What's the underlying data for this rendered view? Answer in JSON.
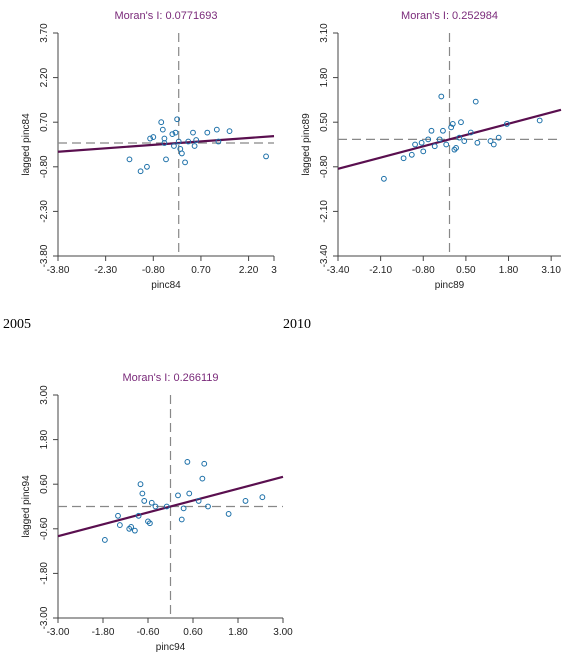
{
  "year_labels": [
    "2005",
    "2010"
  ],
  "chart_data": [
    {
      "type": "scatter",
      "title": "Moran's I: 0.0771693",
      "xlabel": "pinc84",
      "ylabel": "lagged pinc84",
      "xlim": [
        -3.8,
        3.0
      ],
      "ylim": [
        -3.8,
        3.7
      ],
      "x_ticks": [
        "-3.80",
        "-2.30",
        "-0.80",
        "0.70",
        "2.20",
        "3"
      ],
      "x_tick_values": [
        -3.8,
        -2.3,
        -0.8,
        0.7,
        2.2,
        3.0
      ],
      "y_ticks": [
        "-3.80",
        "-2.30",
        "-0.80",
        "0.70",
        "2.20",
        "3.70"
      ],
      "y_tick_values": [
        -3.8,
        -2.3,
        -0.8,
        0.7,
        2.2,
        3.7
      ],
      "mean_x": 0.0,
      "mean_y": 0.0,
      "slope": 0.0771693,
      "points": [
        {
          "x": -1.55,
          "y": -0.55
        },
        {
          "x": -1.2,
          "y": -0.95
        },
        {
          "x": -1.0,
          "y": -0.8
        },
        {
          "x": -0.9,
          "y": 0.15
        },
        {
          "x": -0.8,
          "y": 0.2
        },
        {
          "x": -0.55,
          "y": 0.7
        },
        {
          "x": -0.5,
          "y": 0.45
        },
        {
          "x": -0.45,
          "y": 0.15
        },
        {
          "x": -0.4,
          "y": -0.55
        },
        {
          "x": -0.2,
          "y": 0.3
        },
        {
          "x": -0.1,
          "y": 0.35
        },
        {
          "x": -0.05,
          "y": 0.8
        },
        {
          "x": -0.15,
          "y": -0.1
        },
        {
          "x": 0.05,
          "y": -0.2
        },
        {
          "x": 0.1,
          "y": -0.35
        },
        {
          "x": 0.2,
          "y": -0.65
        },
        {
          "x": 0.0,
          "y": 0.05
        },
        {
          "x": 0.3,
          "y": 0.05
        },
        {
          "x": 0.45,
          "y": 0.35
        },
        {
          "x": 0.5,
          "y": -0.1
        },
        {
          "x": 0.9,
          "y": 0.35
        },
        {
          "x": 1.2,
          "y": 0.45
        },
        {
          "x": 1.25,
          "y": 0.05
        },
        {
          "x": 1.6,
          "y": 0.4
        },
        {
          "x": 2.75,
          "y": -0.45
        },
        {
          "x": -0.45,
          "y": 0.0
        },
        {
          "x": 0.55,
          "y": 0.1
        }
      ]
    },
    {
      "type": "scatter",
      "title": "Moran's I: 0.252984",
      "xlabel": "pinc89",
      "ylabel": "lagged pinc89",
      "xlim": [
        -3.4,
        3.4
      ],
      "ylim": [
        -3.4,
        3.1
      ],
      "x_ticks": [
        "-3.40",
        "-2.10",
        "-0.80",
        "0.50",
        "1.80",
        "3.10"
      ],
      "x_tick_values": [
        -3.4,
        -2.1,
        -0.8,
        0.5,
        1.8,
        3.1
      ],
      "y_ticks": [
        "-3.40",
        "-2.10",
        "-0.80",
        "0.50",
        "1.80",
        "3.10"
      ],
      "y_tick_values": [
        -3.4,
        -2.1,
        -0.8,
        0.5,
        1.8,
        3.1
      ],
      "mean_x": 0.0,
      "mean_y": 0.0,
      "slope": 0.252984,
      "points": [
        {
          "x": -2.0,
          "y": -1.15
        },
        {
          "x": -1.4,
          "y": -0.55
        },
        {
          "x": -1.15,
          "y": -0.45
        },
        {
          "x": -1.05,
          "y": -0.15
        },
        {
          "x": -0.85,
          "y": -0.1
        },
        {
          "x": -0.8,
          "y": -0.35
        },
        {
          "x": -0.65,
          "y": 0.0
        },
        {
          "x": -0.55,
          "y": 0.25
        },
        {
          "x": -0.45,
          "y": -0.2
        },
        {
          "x": -0.3,
          "y": 0.0
        },
        {
          "x": -0.2,
          "y": 0.25
        },
        {
          "x": -0.1,
          "y": -0.15
        },
        {
          "x": -0.25,
          "y": 1.25
        },
        {
          "x": 0.1,
          "y": 0.45
        },
        {
          "x": 0.15,
          "y": -0.3
        },
        {
          "x": 0.2,
          "y": -0.25
        },
        {
          "x": 0.3,
          "y": 0.05
        },
        {
          "x": 0.35,
          "y": 0.5
        },
        {
          "x": 0.45,
          "y": -0.05
        },
        {
          "x": 0.65,
          "y": 0.2
        },
        {
          "x": 0.8,
          "y": 1.1
        },
        {
          "x": 0.85,
          "y": -0.1
        },
        {
          "x": 1.25,
          "y": -0.05
        },
        {
          "x": 1.35,
          "y": -0.15
        },
        {
          "x": 1.5,
          "y": 0.05
        },
        {
          "x": 1.75,
          "y": 0.45
        },
        {
          "x": 2.75,
          "y": 0.55
        },
        {
          "x": 0.05,
          "y": 0.35
        }
      ]
    },
    {
      "type": "scatter",
      "title": "Moran's I: 0.266119",
      "xlabel": "pinc94",
      "ylabel": "lagged pinc94",
      "xlim": [
        -3.0,
        3.0
      ],
      "ylim": [
        -3.0,
        3.0
      ],
      "x_ticks": [
        "-3.00",
        "-1.80",
        "-0.60",
        "0.60",
        "1.80",
        "3.00"
      ],
      "x_tick_values": [
        -3.0,
        -1.8,
        -0.6,
        0.6,
        1.8,
        3.0
      ],
      "y_ticks": [
        "-3.00",
        "-1.80",
        "-0.60",
        "0.60",
        "1.80",
        "3.00"
      ],
      "y_tick_values": [
        -3.0,
        -1.8,
        -0.6,
        0.6,
        1.8,
        3.0
      ],
      "mean_x": 0.0,
      "mean_y": 0.0,
      "slope": 0.266119,
      "points": [
        {
          "x": -1.75,
          "y": -0.9
        },
        {
          "x": -1.4,
          "y": -0.25
        },
        {
          "x": -1.35,
          "y": -0.5
        },
        {
          "x": -1.1,
          "y": -0.6
        },
        {
          "x": -1.05,
          "y": -0.55
        },
        {
          "x": -0.95,
          "y": -0.65
        },
        {
          "x": -0.85,
          "y": -0.25
        },
        {
          "x": -0.8,
          "y": 0.6
        },
        {
          "x": -0.75,
          "y": 0.35
        },
        {
          "x": -0.7,
          "y": 0.15
        },
        {
          "x": -0.6,
          "y": -0.4
        },
        {
          "x": -0.55,
          "y": -0.45
        },
        {
          "x": -0.5,
          "y": 0.1
        },
        {
          "x": -0.4,
          "y": 0.0
        },
        {
          "x": -0.1,
          "y": 0.0
        },
        {
          "x": 0.2,
          "y": 0.3
        },
        {
          "x": 0.3,
          "y": -0.35
        },
        {
          "x": 0.35,
          "y": -0.05
        },
        {
          "x": 0.45,
          "y": 1.2
        },
        {
          "x": 0.5,
          "y": 0.35
        },
        {
          "x": 0.75,
          "y": 0.15
        },
        {
          "x": 0.85,
          "y": 0.75
        },
        {
          "x": 0.9,
          "y": 1.15
        },
        {
          "x": 1.0,
          "y": 0.0
        },
        {
          "x": 1.55,
          "y": -0.2
        },
        {
          "x": 2.0,
          "y": 0.15
        },
        {
          "x": 2.45,
          "y": 0.25
        }
      ]
    }
  ],
  "colors": {
    "point": "#1b6fa8",
    "regression": "#5a0f4f",
    "title": "#7a2a7a",
    "axis": "#444444",
    "mean_line": "#888888"
  }
}
